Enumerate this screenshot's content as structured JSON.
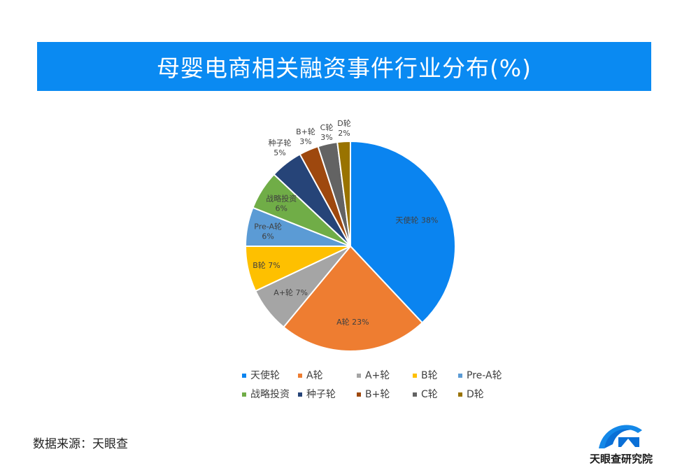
{
  "title": "母婴电商相关融资事件行业分布(%)",
  "source": "数据来源：天眼查",
  "brand": "天眼查研究院",
  "chart_data": {
    "type": "pie",
    "unit": "%",
    "slices": [
      {
        "name": "天使轮",
        "value": 38,
        "label": "天使轮 38%",
        "color": "#0a84f0"
      },
      {
        "name": "A轮",
        "value": 23,
        "label": "A轮 23%",
        "color": "#ee7d31"
      },
      {
        "name": "A+轮",
        "value": 7,
        "label": "A+轮 7%",
        "color": "#a5a5a5"
      },
      {
        "name": "B轮",
        "value": 7,
        "label": "B轮 7%",
        "color": "#fec000"
      },
      {
        "name": "Pre-A轮",
        "value": 6,
        "label": "Pre-A轮 6%",
        "color": "#5b9bd5"
      },
      {
        "name": "战略投资",
        "value": 6,
        "label": "战略投资 6%",
        "color": "#70ad47"
      },
      {
        "name": "种子轮",
        "value": 5,
        "label": "种子轮 5%",
        "color": "#264478"
      },
      {
        "name": "B+轮",
        "value": 3,
        "label": "B+轮 3%",
        "color": "#9e480e"
      },
      {
        "name": "C轮",
        "value": 3,
        "label": "C轮 3%",
        "color": "#636363"
      },
      {
        "name": "D轮",
        "value": 2,
        "label": "D轮 2%",
        "color": "#997300"
      }
    ],
    "legend_position": "bottom"
  }
}
